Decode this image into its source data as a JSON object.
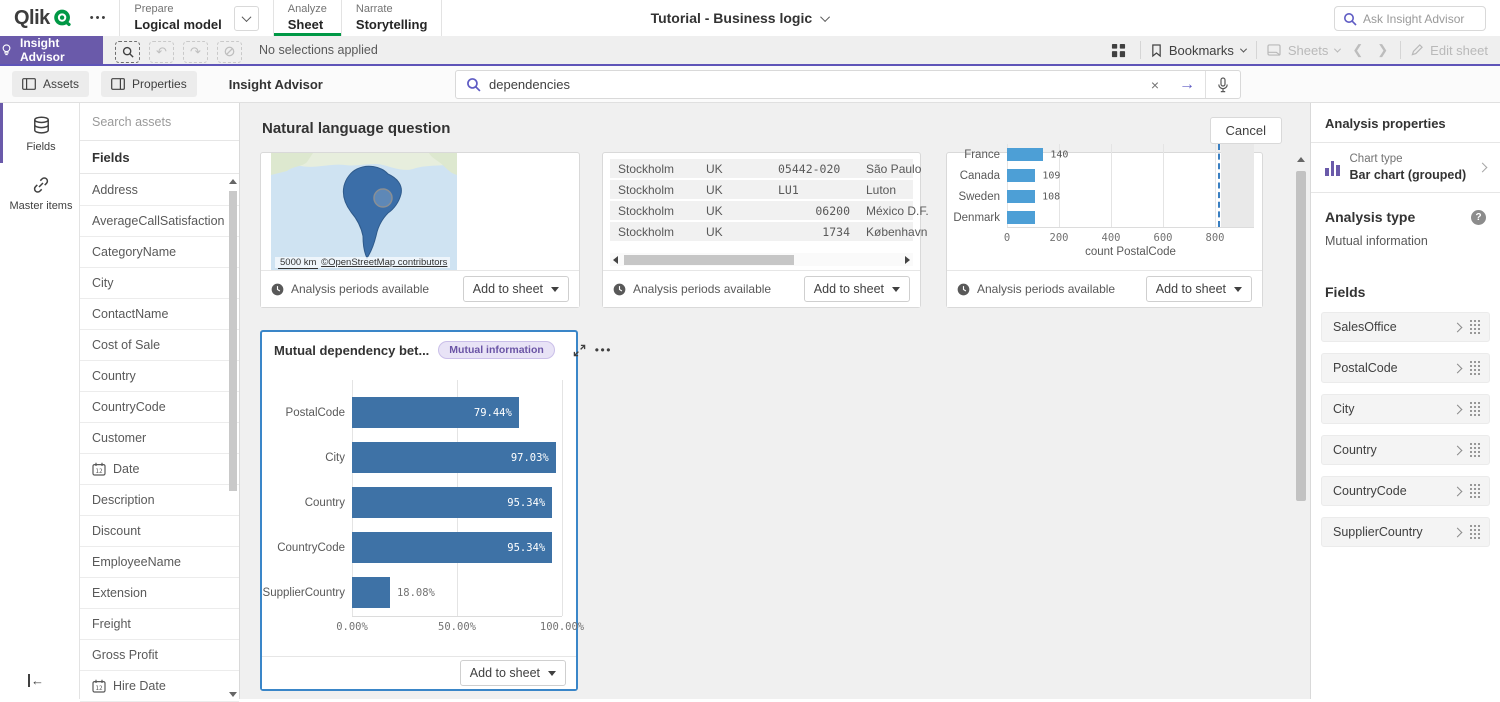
{
  "colors": {
    "accent_purple": "#6a5aaa",
    "brand_green": "#009845",
    "link_purple": "#5f5cc4",
    "bar_blue_dark": "#3e72a6",
    "bar_blue_light": "#4d9fd6",
    "selected_card_border": "#3a86c8"
  },
  "topnav": {
    "logo_text": "Qlik",
    "more_menu": "•••",
    "tabs": [
      {
        "kicker": "Prepare",
        "label": "Logical model"
      },
      {
        "kicker": "Analyze",
        "label": "Sheet"
      },
      {
        "kicker": "Narrate",
        "label": "Storytelling"
      }
    ],
    "app_title": "Tutorial - Business logic",
    "ask_placeholder": "Ask Insight Advisor"
  },
  "toolbar": {
    "insight_advisor_label": "Insight Advisor",
    "selections_status": "No selections applied",
    "bookmarks_label": "Bookmarks",
    "sheets_label": "Sheets",
    "edit_sheet_label": "Edit sheet"
  },
  "subbar": {
    "assets_label": "Assets",
    "properties_label": "Properties",
    "title": "Insight Advisor",
    "search_value": "dependencies"
  },
  "rail": {
    "fields_label": "Fields",
    "master_items_label": "Master items"
  },
  "assets_panel": {
    "search_placeholder": "Search assets",
    "section_header": "Fields",
    "fields": [
      {
        "label": "Address"
      },
      {
        "label": "AverageCallSatisfaction"
      },
      {
        "label": "CategoryName"
      },
      {
        "label": "City"
      },
      {
        "label": "ContactName"
      },
      {
        "label": "Cost of Sale"
      },
      {
        "label": "Country"
      },
      {
        "label": "CountryCode"
      },
      {
        "label": "Customer"
      },
      {
        "label": "Date",
        "calendar_icon": true
      },
      {
        "label": "Description"
      },
      {
        "label": "Discount"
      },
      {
        "label": "EmployeeName"
      },
      {
        "label": "Extension"
      },
      {
        "label": "Freight"
      },
      {
        "label": "Gross Profit"
      },
      {
        "label": "Hire Date",
        "calendar_icon": true
      }
    ]
  },
  "main": {
    "header_title": "Natural language question",
    "cancel_label": "Cancel",
    "analysis_periods_label": "Analysis periods available",
    "add_to_sheet_label": "Add to sheet",
    "map_card": {
      "scale_label": "5000 km",
      "attribution": "©OpenStreetMap contributors"
    },
    "table_card": {
      "rows": [
        [
          "Stockholm",
          "UK",
          "05442-020",
          "São Paulo"
        ],
        [
          "Stockholm",
          "UK",
          "LU1",
          "Luton"
        ],
        [
          "Stockholm",
          "UK",
          "06200",
          "México D.F."
        ],
        [
          "Stockholm",
          "UK",
          "1734",
          "København"
        ]
      ]
    },
    "selected_card": {
      "title": "Mutual dependency bet...",
      "badge": "Mutual information"
    }
  },
  "chart_data": [
    {
      "type": "bar",
      "orientation": "horizontal",
      "title": "",
      "categories": [
        "France",
        "Canada",
        "Sweden",
        "Denmark"
      ],
      "values": [
        140,
        109,
        108,
        108
      ],
      "value_labels": [
        "140",
        "109",
        "108",
        ""
      ],
      "xlabel": "count PostalCode",
      "x_ticks": [
        0,
        200,
        400,
        600,
        800
      ],
      "xlim": [
        0,
        950
      ],
      "reference_line_x": 812,
      "grid": true,
      "first_row_clipped": true
    },
    {
      "type": "bar",
      "orientation": "horizontal",
      "title": "Mutual dependency bet...",
      "categories": [
        "PostalCode",
        "City",
        "Country",
        "CountryCode",
        "SupplierCountry"
      ],
      "values": [
        79.44,
        97.03,
        95.34,
        95.34,
        18.08
      ],
      "value_labels": [
        "79.44%",
        "97.03%",
        "95.34%",
        "95.34%",
        "18.08%"
      ],
      "x_ticks": [
        "0.00%",
        "50.00%",
        "100.00%"
      ],
      "xlim": [
        0,
        100
      ],
      "grid": true
    }
  ],
  "props_panel": {
    "title": "Analysis properties",
    "chart_type_label": "Chart type",
    "chart_type_value": "Bar chart (grouped)",
    "analysis_type_label": "Analysis type",
    "analysis_type_value": "Mutual information",
    "fields_header": "Fields",
    "fields": [
      "SalesOffice",
      "PostalCode",
      "City",
      "Country",
      "CountryCode",
      "SupplierCountry"
    ]
  }
}
